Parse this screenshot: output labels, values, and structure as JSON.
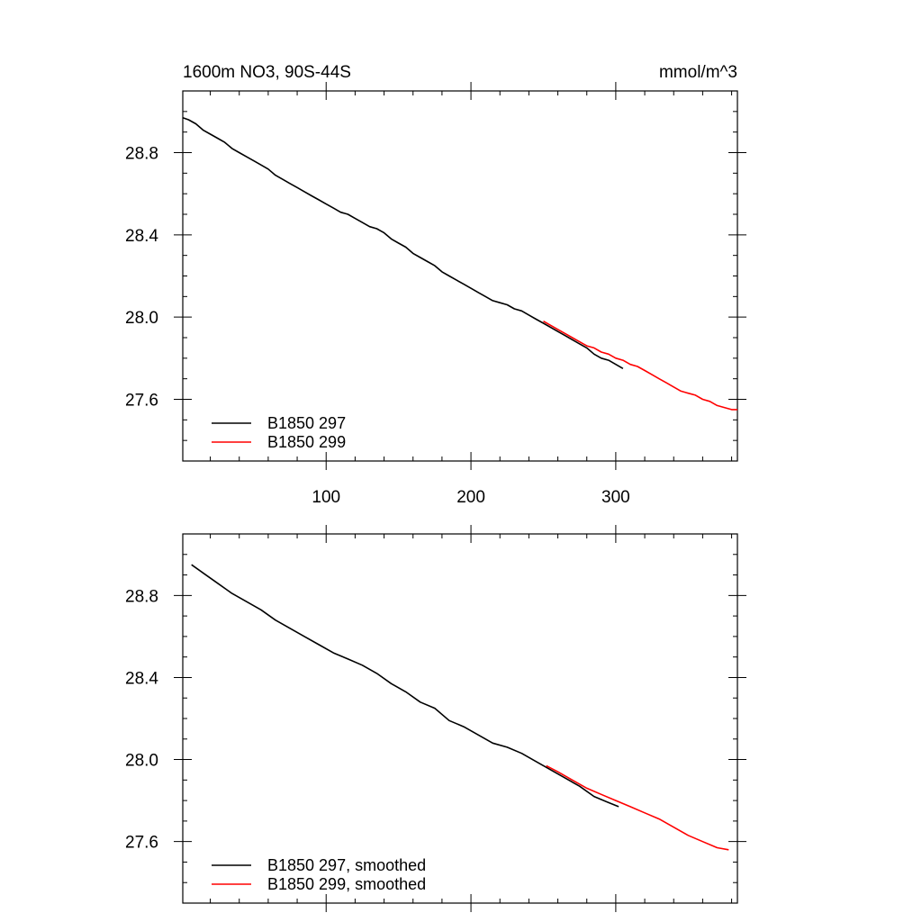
{
  "header": {
    "left_title": "1600m NO3, 90S-44S",
    "right_title": "mmol/m^3"
  },
  "chart_data": [
    {
      "type": "line",
      "xlim": [
        1,
        384
      ],
      "ylim": [
        27.3,
        29.1
      ],
      "xticks": [
        100,
        200,
        300
      ],
      "xtick_labels": [
        "100",
        "200",
        "300"
      ],
      "yticks": [
        27.6,
        28.0,
        28.4,
        28.8
      ],
      "ytick_labels": [
        "27.6",
        "28.0",
        "28.4",
        "28.8"
      ],
      "grid": false,
      "legend_position": "bottom-left",
      "series": [
        {
          "name": "B1850 297",
          "color": "#000000",
          "points": [
            [
              1,
              28.97
            ],
            [
              5,
              28.96
            ],
            [
              10,
              28.94
            ],
            [
              15,
              28.91
            ],
            [
              20,
              28.89
            ],
            [
              25,
              28.87
            ],
            [
              30,
              28.85
            ],
            [
              35,
              28.82
            ],
            [
              40,
              28.8
            ],
            [
              45,
              28.78
            ],
            [
              50,
              28.76
            ],
            [
              55,
              28.74
            ],
            [
              60,
              28.72
            ],
            [
              65,
              28.69
            ],
            [
              70,
              28.67
            ],
            [
              75,
              28.65
            ],
            [
              80,
              28.63
            ],
            [
              85,
              28.61
            ],
            [
              90,
              28.59
            ],
            [
              95,
              28.57
            ],
            [
              100,
              28.55
            ],
            [
              105,
              28.53
            ],
            [
              110,
              28.51
            ],
            [
              115,
              28.5
            ],
            [
              120,
              28.48
            ],
            [
              125,
              28.46
            ],
            [
              130,
              28.44
            ],
            [
              135,
              28.43
            ],
            [
              140,
              28.41
            ],
            [
              145,
              28.38
            ],
            [
              150,
              28.36
            ],
            [
              155,
              28.34
            ],
            [
              160,
              28.31
            ],
            [
              165,
              28.29
            ],
            [
              170,
              28.27
            ],
            [
              175,
              28.25
            ],
            [
              180,
              28.22
            ],
            [
              185,
              28.2
            ],
            [
              190,
              28.18
            ],
            [
              195,
              28.16
            ],
            [
              200,
              28.14
            ],
            [
              205,
              28.12
            ],
            [
              210,
              28.1
            ],
            [
              215,
              28.08
            ],
            [
              220,
              28.07
            ],
            [
              225,
              28.06
            ],
            [
              230,
              28.04
            ],
            [
              235,
              28.03
            ],
            [
              240,
              28.01
            ],
            [
              245,
              27.99
            ],
            [
              250,
              27.97
            ],
            [
              255,
              27.95
            ],
            [
              260,
              27.93
            ],
            [
              265,
              27.91
            ],
            [
              270,
              27.89
            ],
            [
              275,
              27.87
            ],
            [
              280,
              27.85
            ],
            [
              285,
              27.82
            ],
            [
              290,
              27.8
            ],
            [
              295,
              27.79
            ],
            [
              300,
              27.77
            ],
            [
              305,
              27.75
            ]
          ]
        },
        {
          "name": "B1850 299",
          "color": "#ff0000",
          "points": [
            [
              250,
              27.98
            ],
            [
              255,
              27.96
            ],
            [
              260,
              27.94
            ],
            [
              265,
              27.92
            ],
            [
              270,
              27.9
            ],
            [
              275,
              27.88
            ],
            [
              280,
              27.86
            ],
            [
              285,
              27.85
            ],
            [
              290,
              27.83
            ],
            [
              295,
              27.82
            ],
            [
              300,
              27.8
            ],
            [
              305,
              27.79
            ],
            [
              310,
              27.77
            ],
            [
              315,
              27.76
            ],
            [
              320,
              27.74
            ],
            [
              325,
              27.72
            ],
            [
              330,
              27.7
            ],
            [
              335,
              27.68
            ],
            [
              340,
              27.66
            ],
            [
              345,
              27.64
            ],
            [
              350,
              27.63
            ],
            [
              355,
              27.62
            ],
            [
              360,
              27.6
            ],
            [
              365,
              27.59
            ],
            [
              370,
              27.57
            ],
            [
              375,
              27.56
            ],
            [
              380,
              27.55
            ],
            [
              384,
              27.55
            ]
          ]
        }
      ]
    },
    {
      "type": "line",
      "xlim": [
        1,
        384
      ],
      "ylim": [
        27.3,
        29.1
      ],
      "xticks": [
        100,
        200,
        300
      ],
      "xtick_labels": [],
      "yticks": [
        27.6,
        28.0,
        28.4,
        28.8
      ],
      "ytick_labels": [
        "27.6",
        "28.0",
        "28.4",
        "28.8"
      ],
      "grid": false,
      "legend_position": "bottom-left",
      "series": [
        {
          "name": "B1850 297, smoothed",
          "color": "#000000",
          "points": [
            [
              7,
              28.95
            ],
            [
              15,
              28.91
            ],
            [
              25,
              28.86
            ],
            [
              35,
              28.81
            ],
            [
              45,
              28.77
            ],
            [
              55,
              28.73
            ],
            [
              65,
              28.68
            ],
            [
              75,
              28.64
            ],
            [
              85,
              28.6
            ],
            [
              95,
              28.56
            ],
            [
              105,
              28.52
            ],
            [
              115,
              28.49
            ],
            [
              125,
              28.46
            ],
            [
              135,
              28.42
            ],
            [
              145,
              28.37
            ],
            [
              155,
              28.33
            ],
            [
              165,
              28.28
            ],
            [
              175,
              28.25
            ],
            [
              185,
              28.19
            ],
            [
              195,
              28.16
            ],
            [
              205,
              28.12
            ],
            [
              215,
              28.08
            ],
            [
              225,
              28.06
            ],
            [
              235,
              28.03
            ],
            [
              245,
              27.99
            ],
            [
              255,
              27.95
            ],
            [
              265,
              27.91
            ],
            [
              275,
              27.87
            ],
            [
              285,
              27.82
            ],
            [
              295,
              27.79
            ],
            [
              302,
              27.77
            ]
          ]
        },
        {
          "name": "B1850 299, smoothed",
          "color": "#ff0000",
          "points": [
            [
              252,
              27.97
            ],
            [
              260,
              27.94
            ],
            [
              270,
              27.9
            ],
            [
              280,
              27.86
            ],
            [
              290,
              27.83
            ],
            [
              300,
              27.8
            ],
            [
              310,
              27.77
            ],
            [
              320,
              27.74
            ],
            [
              330,
              27.71
            ],
            [
              340,
              27.67
            ],
            [
              350,
              27.63
            ],
            [
              360,
              27.6
            ],
            [
              370,
              27.57
            ],
            [
              378,
              27.56
            ]
          ]
        }
      ]
    }
  ]
}
